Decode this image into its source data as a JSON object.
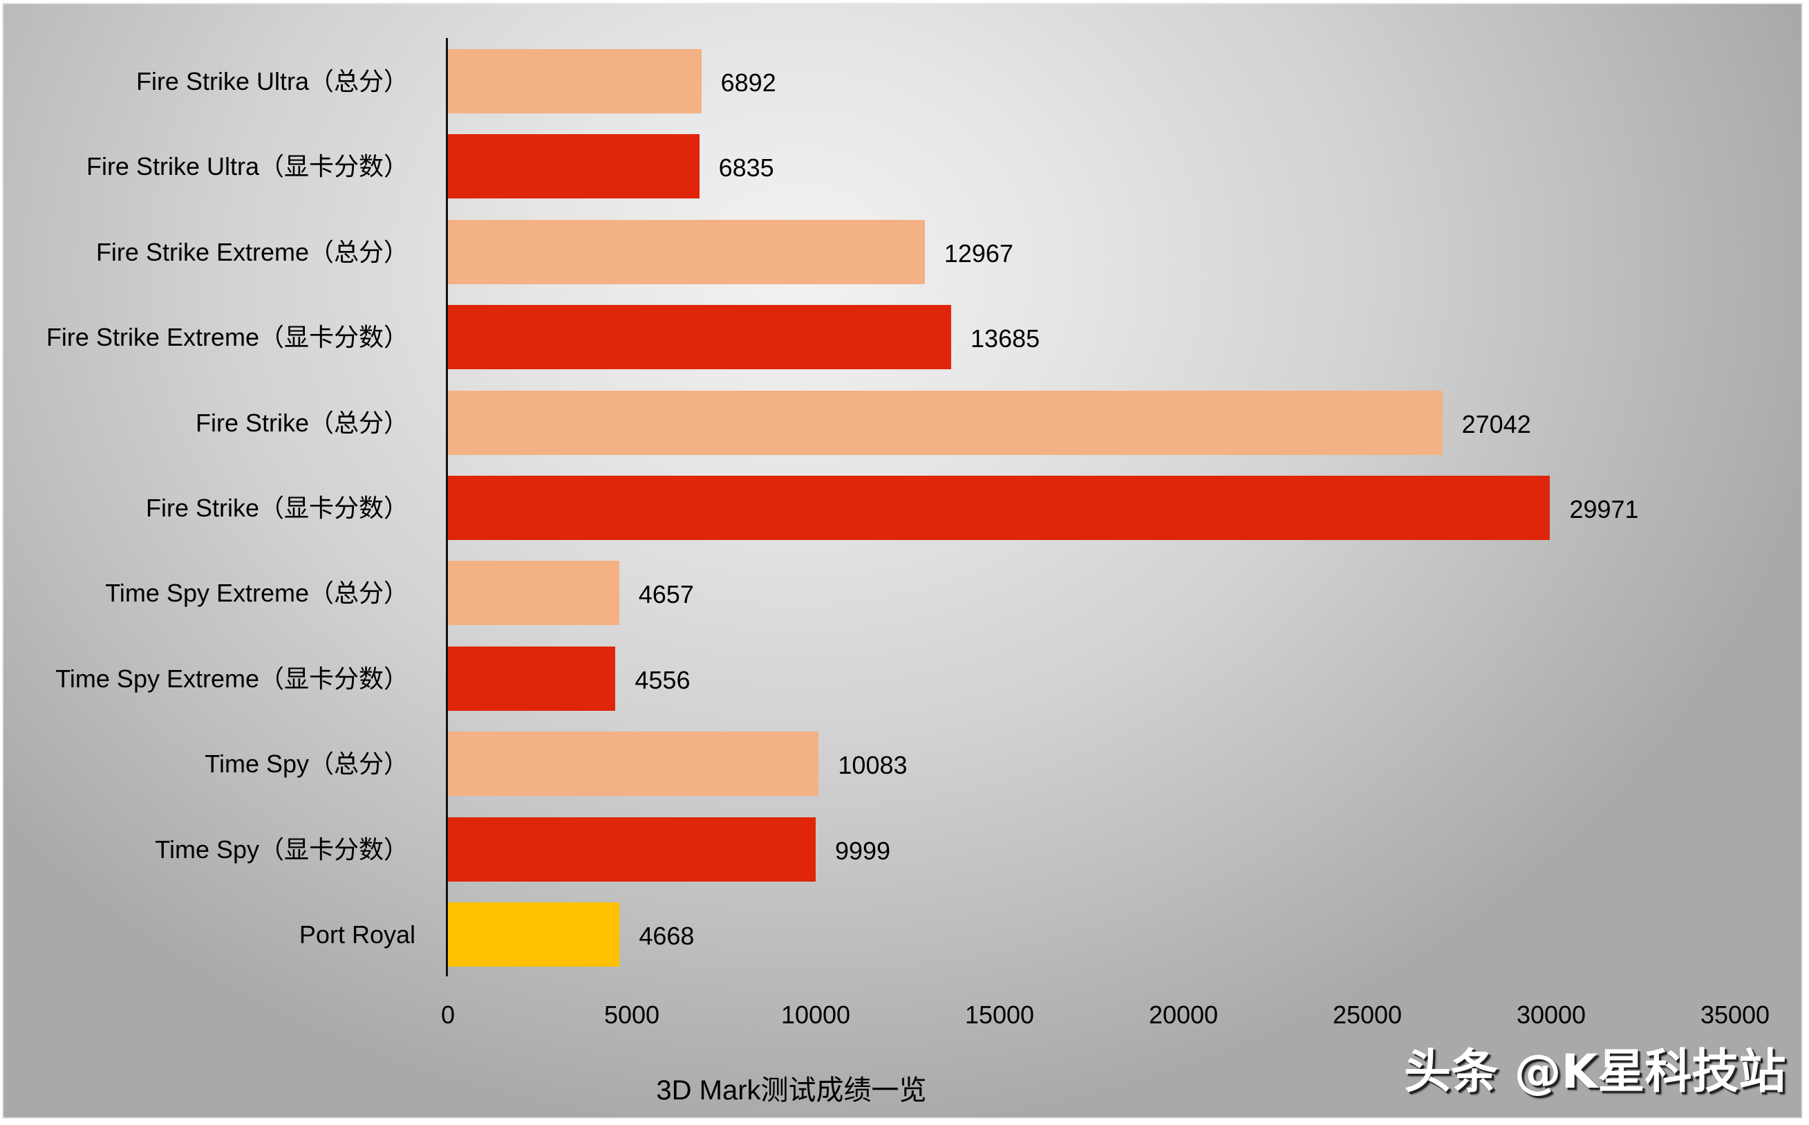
{
  "chart_data": {
    "type": "bar",
    "orientation": "horizontal",
    "title": "",
    "xlabel": "3D Mark测试成绩一览",
    "ylabel": "",
    "xlim": [
      0,
      35000
    ],
    "xticks": [
      "0",
      "5000",
      "10000",
      "15000",
      "20000",
      "25000",
      "30000",
      "35000"
    ],
    "grid": false,
    "legend": null,
    "categories": [
      "Fire Strike  Ultra（总分）",
      "Fire Strike  Ultra（显卡分数）",
      "Fire Strike  Extreme（总分）",
      "Fire Strike  Extreme（显卡分数）",
      "Fire Strike（总分）",
      "Fire Strike（显卡分数）",
      "Time Spy Extreme（总分）",
      "Time Spy Extreme（显卡分数）",
      "Time Spy（总分）",
      "Time Spy（显卡分数）",
      "Port Royal"
    ],
    "values": [
      6892,
      6835,
      12967,
      13685,
      27042,
      29971,
      4657,
      4556,
      10083,
      9999,
      4668
    ],
    "colors": [
      "#f4b183",
      "#df260a",
      "#f4b183",
      "#df260a",
      "#f4b183",
      "#df260a",
      "#f4b183",
      "#df260a",
      "#f4b183",
      "#df260a",
      "#ffc000"
    ],
    "data_labels": [
      "6892",
      "6835",
      "12967",
      "13685",
      "27042",
      "29971",
      "4657",
      "4556",
      "10083",
      "9999",
      "4668"
    ]
  },
  "watermark": "头条 @K星科技站",
  "colors": {
    "total_score": "#f4b183",
    "gpu_score": "#df260a",
    "port_royal": "#ffc000",
    "axis": "#111111"
  }
}
